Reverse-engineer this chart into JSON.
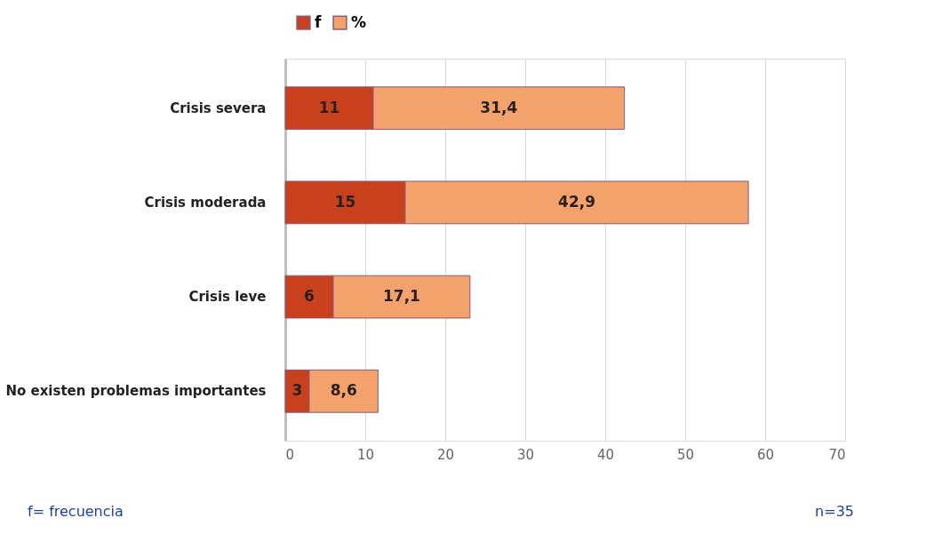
{
  "chart_data": {
    "type": "bar",
    "orientation": "horizontal",
    "stacked": true,
    "categories": [
      "Crisis severa",
      "Crisis moderada",
      "Crisis leve",
      "No existen problemas importantes"
    ],
    "series": [
      {
        "name": "f",
        "color": "#c8401c",
        "values": [
          11,
          15,
          6,
          3
        ],
        "value_labels": [
          "11",
          "15",
          "6",
          "3"
        ]
      },
      {
        "name": "%",
        "color": "#f4a26b",
        "values": [
          31.4,
          42.9,
          17.1,
          8.6
        ],
        "value_labels": [
          "31,4",
          "42,9",
          "17,1",
          "8,6"
        ]
      }
    ],
    "xlim": [
      0,
      70
    ],
    "xticks": [
      0,
      10,
      20,
      30,
      40,
      50,
      60,
      70
    ],
    "grid": "x",
    "legend": "top",
    "annotations": [
      "f= frecuencia",
      "n=35"
    ]
  }
}
